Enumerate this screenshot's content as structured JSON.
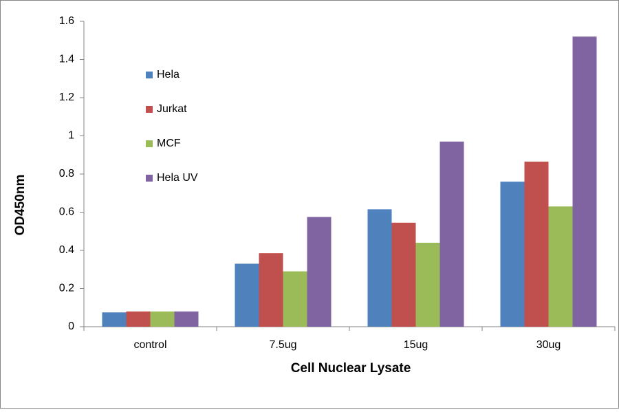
{
  "chart_data": {
    "type": "bar",
    "x_label": "Cell Nuclear Lysate",
    "y_label": "OD450nm",
    "categories": [
      "control",
      "7.5ug",
      "15ug",
      "30ug"
    ],
    "series": [
      {
        "name": "Hela",
        "color": "#4f81bd",
        "values": [
          0.075,
          0.33,
          0.615,
          0.76
        ]
      },
      {
        "name": "Jurkat",
        "color": "#c0504d",
        "values": [
          0.08,
          0.385,
          0.545,
          0.865
        ]
      },
      {
        "name": "MCF",
        "color": "#9bbb59",
        "values": [
          0.08,
          0.29,
          0.44,
          0.63
        ]
      },
      {
        "name": "Hela UV",
        "color": "#8064a2",
        "values": [
          0.08,
          0.575,
          0.97,
          1.52
        ]
      }
    ],
    "ylim": [
      0,
      1.6
    ],
    "yticks": [
      0,
      0.2,
      0.4,
      0.6,
      0.8,
      1,
      1.2,
      1.4,
      1.6
    ],
    "grid": false,
    "legend": "upper left"
  }
}
